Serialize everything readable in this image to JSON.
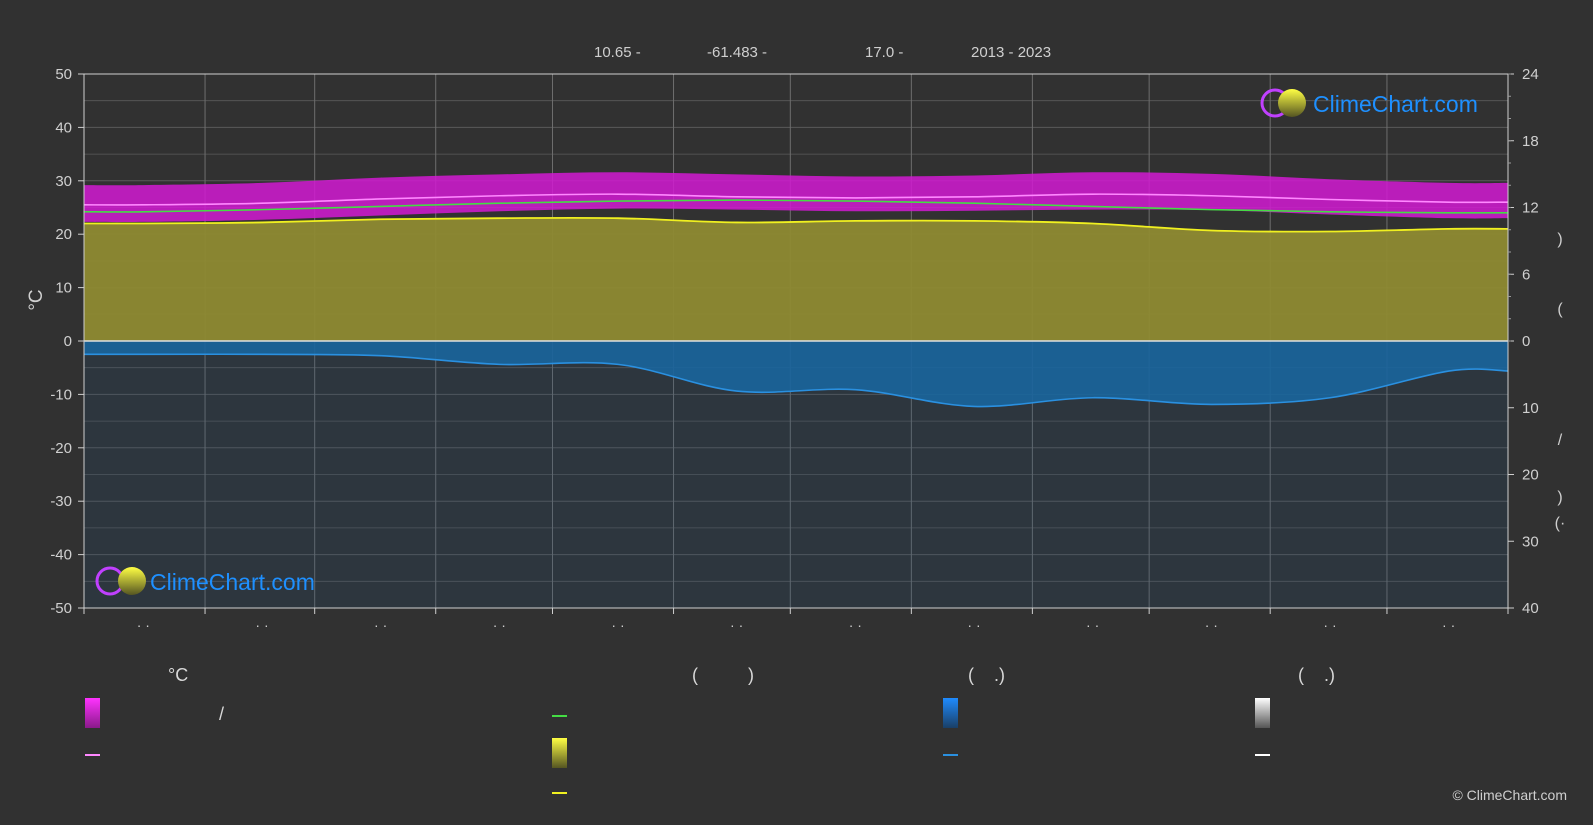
{
  "header": {
    "lat": "10.65 -",
    "lon": "-61.483 -",
    "elev": "17.0 -",
    "years": "2013 - 2023"
  },
  "brand": {
    "name": "ClimeChart.com",
    "credit": "© ClimeChart.com"
  },
  "colors": {
    "background": "#313131",
    "temp_band": "#d21ad2",
    "temp_line": "#ff88ff",
    "daylight_line": "#44dd44",
    "sunshine_fill": "#8e8a32",
    "sunshine_line": "#f0f020",
    "rain_fill": "#1a6aa5",
    "rain_line": "#2a90e0",
    "brand_text": "#1e90ff"
  },
  "legend": {
    "col1_title": "°C",
    "col1_row1_text": "/",
    "col2_title": "(          )",
    "col3_title": "(    .)",
    "col4_title": "(    .)",
    "icons": [
      "temperature-range-swatch",
      "temperature-mean-line",
      "daylight-line",
      "sunshine-swatch",
      "sunshine-line",
      "rain-swatch",
      "rain-line",
      "snow-swatch",
      "snow-line"
    ]
  },
  "chart_data": {
    "type": "area",
    "categories": [
      "· ·",
      "· ·",
      "· ·",
      "· ·",
      "· ·",
      "· ·",
      "· ·",
      "· ·",
      "· ·",
      "· ·",
      "· ·",
      "· ·"
    ],
    "ylabel": "°C",
    "ylim": [
      -50,
      50
    ],
    "y_ticks": [
      50,
      40,
      30,
      20,
      10,
      0,
      -10,
      -20,
      -30,
      -40,
      -50
    ],
    "y2_top_ticks": [
      24,
      18,
      12,
      6,
      0
    ],
    "y2_top_range": [
      0,
      24
    ],
    "y2_bottom_ticks": [
      0,
      10,
      20,
      30,
      40
    ],
    "y2_bottom_range": [
      0,
      40
    ],
    "y2_label_chars": [
      ")",
      "(",
      "/",
      ")",
      "(·"
    ],
    "grid": true,
    "series": [
      {
        "values": [
          25.5,
          25.8,
          26.6,
          27.2,
          27.5,
          27.0,
          26.8,
          27.0,
          27.5,
          27.2,
          26.5,
          26.0
        ]
      },
      {
        "values": [
          24.2,
          24.6,
          25.2,
          25.8,
          26.2,
          26.4,
          26.2,
          25.8,
          25.2,
          24.6,
          24.2,
          24.0
        ]
      },
      {
        "values": [
          22.0,
          22.2,
          22.8,
          23.0,
          23.0,
          22.2,
          22.5,
          22.5,
          22.0,
          20.7,
          20.5,
          21.0
        ]
      },
      {
        "values": [
          2.0,
          2.0,
          2.2,
          3.5,
          3.5,
          7.5,
          7.3,
          9.8,
          8.5,
          9.5,
          8.5,
          4.5
        ]
      },
      {
        "values": [
          22.3,
          22.7,
          23.5,
          24.3,
          24.8,
          24.6,
          24.3,
          24.4,
          24.6,
          24.5,
          23.7,
          23.0
        ]
      },
      {
        "values": [
          29.2,
          29.6,
          30.6,
          31.2,
          31.6,
          31.2,
          30.8,
          31.0,
          31.6,
          31.3,
          30.3,
          29.6
        ]
      }
    ]
  }
}
